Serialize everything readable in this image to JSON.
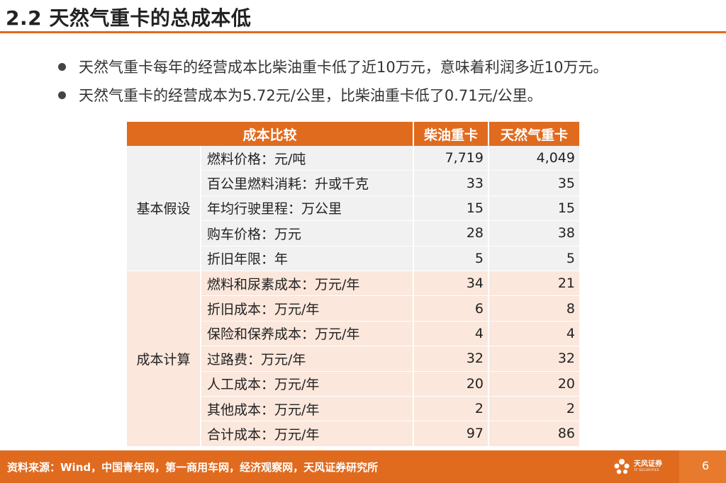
{
  "header": {
    "title": "2.2 天然气重卡的总成本低"
  },
  "bullets": [
    "天然气重卡每年的经营成本比柴油重卡低了近10万元，意味着利润多近10万元。",
    "天然气重卡的经营成本为5.72元/公里，比柴油重卡低了0.71元/公里。"
  ],
  "table": {
    "headers": [
      "成本比较",
      "柴油重卡",
      "天然气重卡"
    ],
    "groups": [
      {
        "label": "基本假设",
        "rows": [
          {
            "item": "燃料价格：元/吨",
            "diesel": "7,719",
            "gas": "4,049"
          },
          {
            "item": "百公里燃料消耗：升或千克",
            "diesel": "33",
            "gas": "35"
          },
          {
            "item": "年均行驶里程：万公里",
            "diesel": "15",
            "gas": "15"
          },
          {
            "item": "购车价格：万元",
            "diesel": "28",
            "gas": "38"
          },
          {
            "item": "折旧年限：年",
            "diesel": "5",
            "gas": "5"
          }
        ]
      },
      {
        "label": "成本计算",
        "rows": [
          {
            "item": "燃料和尿素成本：万元/年",
            "diesel": "34",
            "gas": "21"
          },
          {
            "item": "折旧成本：万元/年",
            "diesel": "6",
            "gas": "8"
          },
          {
            "item": "保险和保养成本：万元/年",
            "diesel": "4",
            "gas": "4"
          },
          {
            "item": "过路费：万元/年",
            "diesel": "32",
            "gas": "32"
          },
          {
            "item": "人工成本：万元/年",
            "diesel": "20",
            "gas": "20"
          },
          {
            "item": "其他成本：万元/年",
            "diesel": "2",
            "gas": "2"
          },
          {
            "item": "合计成本：万元/年",
            "diesel": "97",
            "gas": "86"
          }
        ]
      }
    ]
  },
  "footer": {
    "source": "资料来源：Wind，中国青年网，第一商用车网，经济观察网，天风证券研究所",
    "logo_cn": "天风证券",
    "logo_en": "TF SECURITIES",
    "page_number": "6"
  },
  "colors": {
    "accent": "#e06b1f",
    "group_a_bg": "#f1f1f1",
    "group_b_bg": "#fbe7dc"
  },
  "icons": {
    "logo": "flower-icon",
    "bullet": "bullet-dot-icon"
  }
}
